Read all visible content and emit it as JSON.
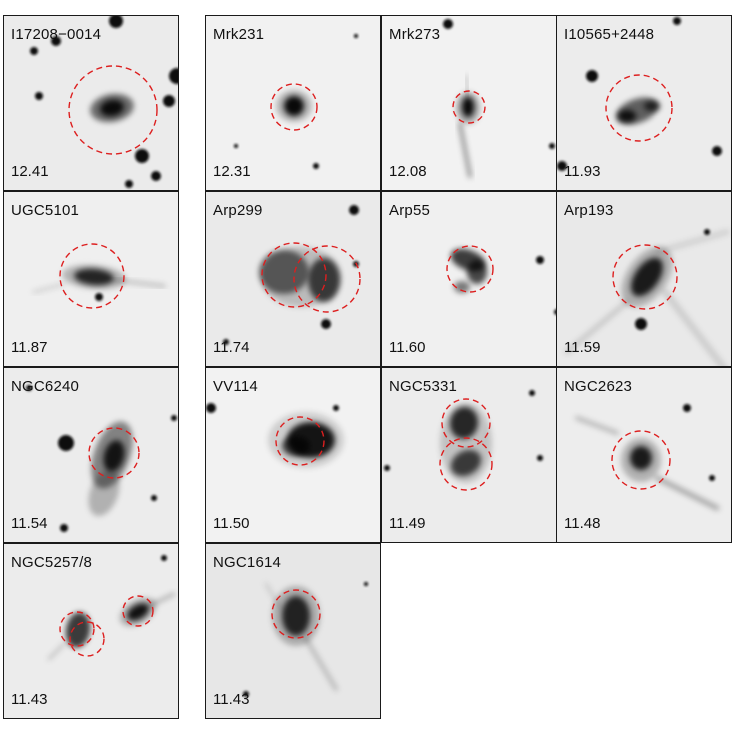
{
  "figure": {
    "circle_color": "#dd1f1f",
    "panels": [
      {
        "name": "I17208−0014",
        "luminosity": "12.41"
      },
      {
        "name": "Mrk231",
        "luminosity": "12.31"
      },
      {
        "name": "Mrk273",
        "luminosity": "12.08"
      },
      {
        "name": "I10565+2448",
        "luminosity": "11.93"
      },
      {
        "name": "UGC5101",
        "luminosity": "11.87"
      },
      {
        "name": "Arp299",
        "luminosity": "11.74"
      },
      {
        "name": "Arp55",
        "luminosity": "11.60"
      },
      {
        "name": "Arp193",
        "luminosity": "11.59"
      },
      {
        "name": "NGC6240",
        "luminosity": "11.54"
      },
      {
        "name": "VV114",
        "luminosity": "11.50"
      },
      {
        "name": "NGC5331",
        "luminosity": "11.49"
      },
      {
        "name": "NGC2623",
        "luminosity": "11.48"
      },
      {
        "name": "NGC5257/8",
        "luminosity": "11.43"
      },
      {
        "name": "NGC1614",
        "luminosity": "11.43"
      }
    ]
  }
}
